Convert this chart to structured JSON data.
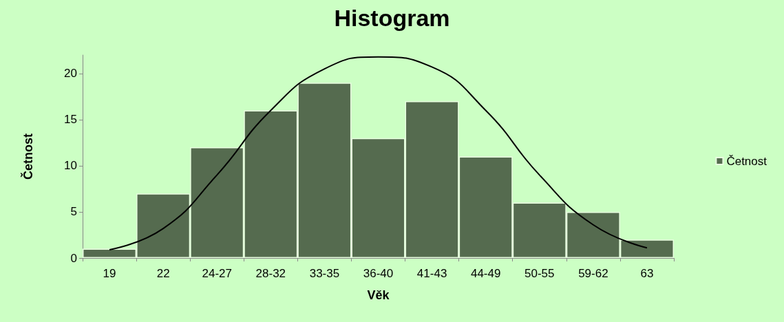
{
  "chart_data": {
    "type": "bar",
    "title": "Histogram",
    "xlabel": "Věk",
    "ylabel": "Četnost",
    "categories": [
      "19",
      "22",
      "24-27",
      "28-32",
      "33-35",
      "36-40",
      "41-43",
      "44-49",
      "50-55",
      "59-62",
      "63"
    ],
    "series": [
      {
        "name": "Četnost",
        "color": "#556b4f",
        "values": [
          1,
          7,
          12,
          16,
          19,
          13,
          17,
          11,
          6,
          5,
          2
        ]
      },
      {
        "type": "line",
        "color": "#000000",
        "values": [
          0.9,
          3.2,
          9,
          16,
          20.5,
          21.8,
          20.7,
          16,
          9,
          3.6,
          1.1
        ]
      }
    ],
    "ylim": [
      0,
      22
    ],
    "yticks": [
      0,
      5,
      10,
      15,
      20
    ],
    "grid": false,
    "legend": "right",
    "marker": "none",
    "line_style": "solid"
  }
}
